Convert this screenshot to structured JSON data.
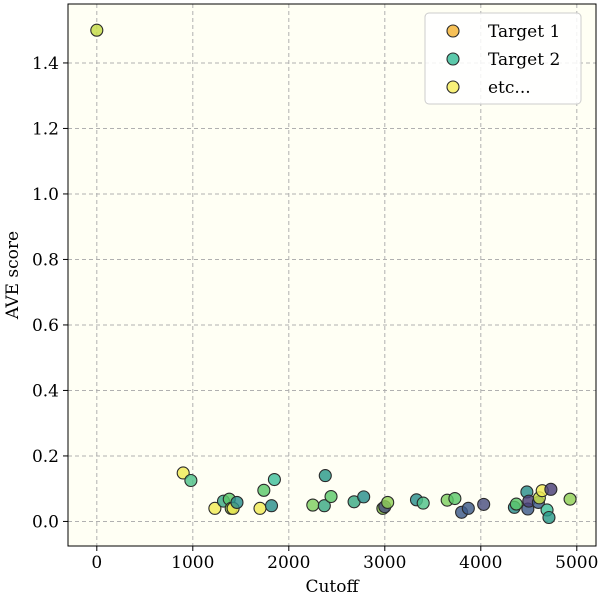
{
  "chart_data": {
    "type": "scatter",
    "title": "",
    "xlabel": "Cutoff",
    "ylabel": "AVE score",
    "xlim": [
      -300,
      5200
    ],
    "ylim": [
      -0.075,
      1.58
    ],
    "x_ticks": [
      0,
      1000,
      2000,
      3000,
      4000,
      5000
    ],
    "y_ticks": [
      0.0,
      0.2,
      0.4,
      0.6,
      0.8,
      1.0,
      1.2,
      1.4
    ],
    "x_tick_labels": [
      "0",
      "1000",
      "2000",
      "3000",
      "4000",
      "5000"
    ],
    "y_tick_labels": [
      "0.0",
      "0.2",
      "0.4",
      "0.6",
      "0.8",
      "1.0",
      "1.2",
      "1.4"
    ],
    "grid": true,
    "background_color": "#fffff4",
    "legend_position": "top-right",
    "legend": [
      {
        "label": "Target 1",
        "color": "#f5b53a"
      },
      {
        "label": "Target 2",
        "color": "#3fbf9c"
      },
      {
        "label": "etc...",
        "color": "#f7ee61"
      }
    ],
    "points": [
      {
        "x": 0,
        "y": 1.5,
        "color": "#c5dc45"
      },
      {
        "x": 900,
        "y": 0.148,
        "color": "#f2ec56"
      },
      {
        "x": 980,
        "y": 0.125,
        "color": "#4fc28a"
      },
      {
        "x": 1230,
        "y": 0.04,
        "color": "#f2ec56"
      },
      {
        "x": 1320,
        "y": 0.062,
        "color": "#3aaa84"
      },
      {
        "x": 1380,
        "y": 0.068,
        "color": "#5bc86a"
      },
      {
        "x": 1400,
        "y": 0.04,
        "color": "#8fc23c"
      },
      {
        "x": 1420,
        "y": 0.04,
        "color": "#f2ec56"
      },
      {
        "x": 1460,
        "y": 0.058,
        "color": "#2a8f8c"
      },
      {
        "x": 1700,
        "y": 0.04,
        "color": "#f2ec56"
      },
      {
        "x": 1740,
        "y": 0.095,
        "color": "#5bc86a"
      },
      {
        "x": 1820,
        "y": 0.048,
        "color": "#2a8f8c"
      },
      {
        "x": 1850,
        "y": 0.128,
        "color": "#3fbf9c"
      },
      {
        "x": 2250,
        "y": 0.05,
        "color": "#7ecf60"
      },
      {
        "x": 2370,
        "y": 0.048,
        "color": "#3aaa84"
      },
      {
        "x": 2380,
        "y": 0.14,
        "color": "#2a9a8a"
      },
      {
        "x": 2440,
        "y": 0.076,
        "color": "#5bc86a"
      },
      {
        "x": 2680,
        "y": 0.06,
        "color": "#3aaa84"
      },
      {
        "x": 2780,
        "y": 0.075,
        "color": "#2a8f8c"
      },
      {
        "x": 2980,
        "y": 0.04,
        "color": "#7ab840"
      },
      {
        "x": 3000,
        "y": 0.045,
        "color": "#4a4f80"
      },
      {
        "x": 3030,
        "y": 0.058,
        "color": "#8fcf56"
      },
      {
        "x": 3330,
        "y": 0.066,
        "color": "#2a8f8c"
      },
      {
        "x": 3400,
        "y": 0.056,
        "color": "#4fc28a"
      },
      {
        "x": 3650,
        "y": 0.065,
        "color": "#7ecf60"
      },
      {
        "x": 3730,
        "y": 0.07,
        "color": "#5bc86a"
      },
      {
        "x": 3800,
        "y": 0.028,
        "color": "#3d5a8a"
      },
      {
        "x": 3870,
        "y": 0.04,
        "color": "#3d5a8a"
      },
      {
        "x": 4030,
        "y": 0.052,
        "color": "#4a4f80"
      },
      {
        "x": 4350,
        "y": 0.043,
        "color": "#2a8f8c"
      },
      {
        "x": 4370,
        "y": 0.053,
        "color": "#5bc86a"
      },
      {
        "x": 4480,
        "y": 0.09,
        "color": "#2a8f8c"
      },
      {
        "x": 4490,
        "y": 0.038,
        "color": "#3d5a8a"
      },
      {
        "x": 4500,
        "y": 0.062,
        "color": "#4a3f78"
      },
      {
        "x": 4600,
        "y": 0.058,
        "color": "#3d5a8a"
      },
      {
        "x": 4610,
        "y": 0.072,
        "color": "#c5dc45"
      },
      {
        "x": 4640,
        "y": 0.094,
        "color": "#f2ec56"
      },
      {
        "x": 4690,
        "y": 0.035,
        "color": "#3fbf9c"
      },
      {
        "x": 4710,
        "y": 0.012,
        "color": "#2a9a8a"
      },
      {
        "x": 4730,
        "y": 0.098,
        "color": "#4a3f78"
      },
      {
        "x": 4930,
        "y": 0.068,
        "color": "#8fcf56"
      }
    ]
  }
}
